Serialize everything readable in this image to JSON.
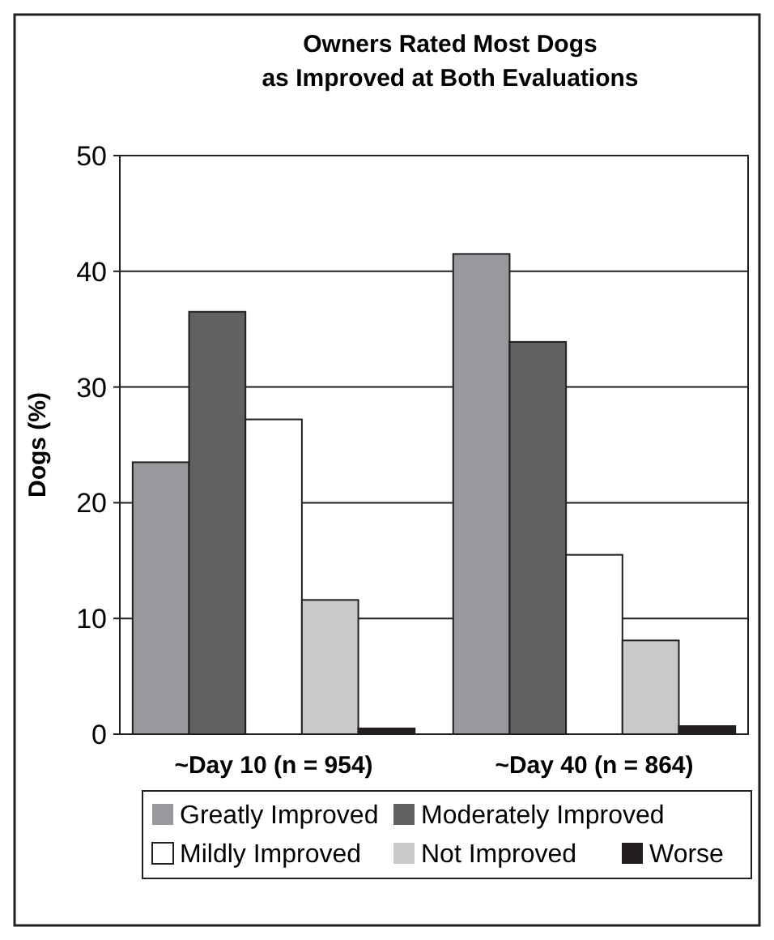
{
  "chart_data": {
    "type": "bar",
    "title": "Owners Rated Most Dogs as Improved at Both Evaluations",
    "ylabel": "Dogs (%)",
    "categories": [
      "~Day 10 (n = 954)",
      "~Day 40 (n = 864)"
    ],
    "series": [
      {
        "name": "Greatly Improved",
        "color": "#98999d",
        "values": [
          23.5,
          41.5
        ]
      },
      {
        "name": "Moderately Improved",
        "color": "#616163",
        "values": [
          36.5,
          33.9
        ]
      },
      {
        "name": "Mildly Improved",
        "color": "#ffffff",
        "values": [
          27.2,
          15.5
        ]
      },
      {
        "name": "Not Improved",
        "color": "#c8c9cb",
        "values": [
          11.6,
          8.1
        ]
      },
      {
        "name": "Worse",
        "color": "#231f20",
        "values": [
          0.5,
          0.7
        ]
      }
    ],
    "ylim": [
      0,
      50
    ],
    "yticks": [
      0,
      10,
      20,
      30,
      40,
      50
    ],
    "grid": "y",
    "legend": "bottom"
  }
}
